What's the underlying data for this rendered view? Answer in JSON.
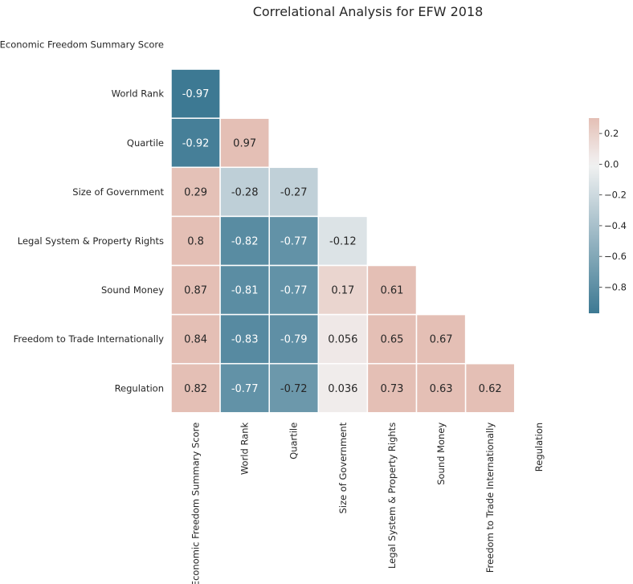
{
  "chart_data": {
    "type": "heatmap",
    "title": "Correlational Analysis for EFW 2018",
    "mask": "upper-triangle-including-diagonal",
    "row_labels": [
      "Economic Freedom Summary Score",
      "World Rank",
      "Quartile",
      "Size of Government",
      "Legal System & Property Rights",
      "Sound Money",
      "Freedom to Trade Internationally",
      "Regulation"
    ],
    "col_labels": [
      "Economic Freedom Summary Score",
      "World Rank",
      "Quartile",
      "Size of Government",
      "Legal System & Property Rights",
      "Sound Money",
      "Freedom to Trade Internationally",
      "Regulation"
    ],
    "values": [
      [
        null,
        null,
        null,
        null,
        null,
        null,
        null,
        null
      ],
      [
        -0.97,
        null,
        null,
        null,
        null,
        null,
        null,
        null
      ],
      [
        -0.92,
        0.97,
        null,
        null,
        null,
        null,
        null,
        null
      ],
      [
        0.29,
        -0.28,
        -0.27,
        null,
        null,
        null,
        null,
        null
      ],
      [
        0.8,
        -0.82,
        -0.77,
        -0.12,
        null,
        null,
        null,
        null
      ],
      [
        0.87,
        -0.81,
        -0.77,
        0.17,
        0.61,
        null,
        null,
        null
      ],
      [
        0.84,
        -0.83,
        -0.79,
        0.056,
        0.65,
        0.67,
        null,
        null
      ],
      [
        0.82,
        -0.77,
        -0.72,
        0.036,
        0.73,
        0.63,
        0.62,
        null
      ]
    ],
    "annotations": [
      [
        null,
        null,
        null,
        null,
        null,
        null,
        null,
        null
      ],
      [
        "-0.97",
        null,
        null,
        null,
        null,
        null,
        null,
        null
      ],
      [
        "-0.92",
        "0.97",
        null,
        null,
        null,
        null,
        null,
        null
      ],
      [
        "0.29",
        "-0.28",
        "-0.27",
        null,
        null,
        null,
        null,
        null
      ],
      [
        "0.8",
        "-0.82",
        "-0.77",
        "-0.12",
        null,
        null,
        null,
        null
      ],
      [
        "0.87",
        "-0.81",
        "-0.77",
        "0.17",
        "0.61",
        null,
        null,
        null
      ],
      [
        "0.84",
        "-0.83",
        "-0.79",
        "0.056",
        "0.65",
        "0.67",
        null,
        null
      ],
      [
        "0.82",
        "-0.77",
        "-0.72",
        "0.036",
        "0.73",
        "0.63",
        "0.62",
        null
      ]
    ],
    "color_range": [
      -0.97,
      0.3
    ],
    "colors": {
      "negative": "#3d7993",
      "center": "#f2f2f2",
      "positive": "#e4bfb5"
    },
    "colorbar": {
      "placement": "right",
      "ticks": [
        0.2,
        0.0,
        -0.2,
        -0.4,
        -0.6,
        -0.8
      ],
      "tick_labels": [
        "0.2",
        "0.0",
        "−0.2",
        "−0.4",
        "−0.6",
        "−0.8"
      ]
    },
    "grid": false,
    "legend": "colorbar-right"
  }
}
